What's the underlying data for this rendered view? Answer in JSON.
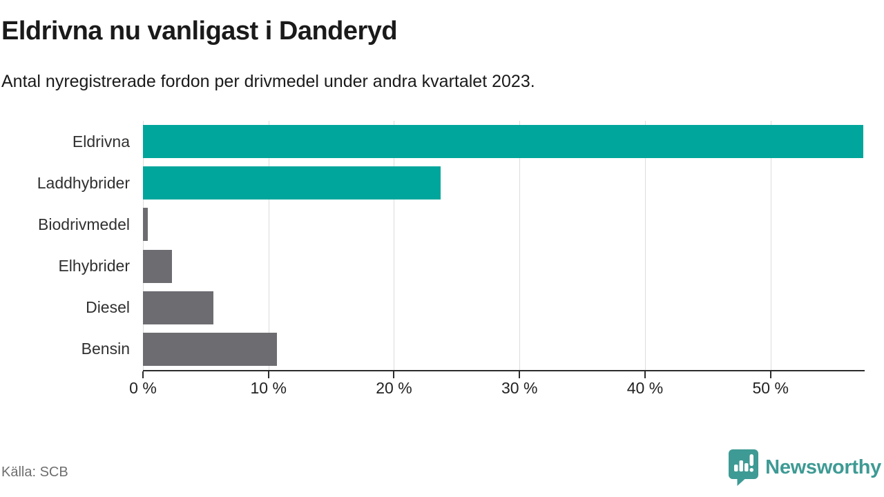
{
  "header": {
    "title": "Eldrivna nu vanligast i Danderyd",
    "subtitle": "Antal nyregistrerade fordon per drivmedel under andra kvartalet 2023."
  },
  "chart_data": {
    "type": "bar",
    "orientation": "horizontal",
    "title": "Eldrivna nu vanligast i Danderyd",
    "subtitle": "Antal nyregistrerade fordon per drivmedel under andra kvartalet 2023.",
    "categories": [
      "Eldrivna",
      "Laddhybrider",
      "Biodrivmedel",
      "Elhybrider",
      "Diesel",
      "Bensin"
    ],
    "values": [
      57.4,
      23.7,
      0.4,
      2.3,
      5.6,
      10.7
    ],
    "unit": "%",
    "xlim": [
      0,
      57.5
    ],
    "x_ticks": [
      0,
      10,
      20,
      30,
      40,
      50
    ],
    "x_tick_labels": [
      "0 %",
      "10 %",
      "20 %",
      "30 %",
      "40 %",
      "50 %"
    ],
    "bar_colors": [
      "#00a69b",
      "#00a69b",
      "#6c6c71",
      "#6c6c71",
      "#6c6c71",
      "#6c6c71"
    ],
    "grid": "vertical-only",
    "legend": "none"
  },
  "footer": {
    "source": "Källa: SCB",
    "brand": "Newsworthy"
  },
  "colors": {
    "highlight": "#00a69b",
    "muted": "#6c6c71",
    "brand_teal": "#3e9a94",
    "axis": "#2b2b2b",
    "gridline": "#dcdcdc",
    "text_dark": "#1a1a1a",
    "text_gray": "#6e6e6e"
  }
}
